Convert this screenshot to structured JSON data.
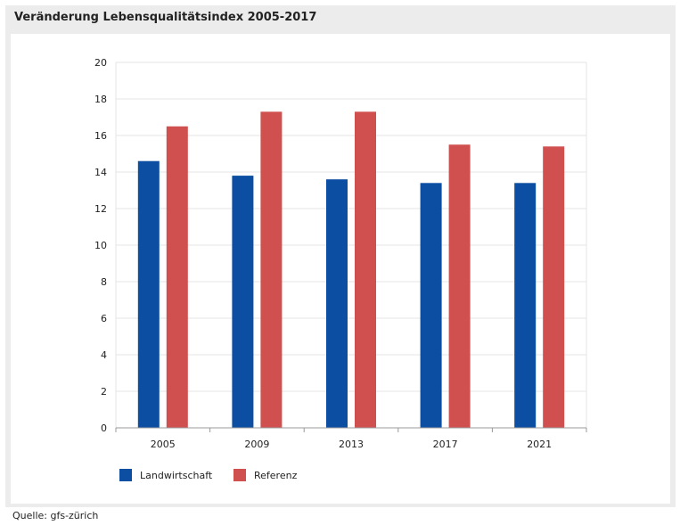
{
  "title": "Veränderung Lebensqualitätsindex 2005-2017",
  "source": "Quelle: gfs-zürich",
  "colors": {
    "landwirtschaft": "#0b4ea2",
    "referenz": "#d0504f",
    "grid": "#e4e4e4"
  },
  "chart_data": {
    "type": "bar",
    "categories": [
      "2005",
      "2009",
      "2013",
      "2017",
      "2021"
    ],
    "series": [
      {
        "name": "Landwirtschaft",
        "values": [
          14.6,
          13.8,
          13.6,
          13.4,
          13.4
        ]
      },
      {
        "name": "Referenz",
        "values": [
          16.5,
          17.3,
          17.3,
          15.5,
          15.4
        ]
      }
    ],
    "ylim": [
      0,
      20
    ],
    "yticks": [
      "0",
      "2",
      "4",
      "6",
      "8",
      "10",
      "12",
      "14",
      "16",
      "18",
      "20"
    ],
    "grid": true,
    "legend": "bottom-left"
  }
}
